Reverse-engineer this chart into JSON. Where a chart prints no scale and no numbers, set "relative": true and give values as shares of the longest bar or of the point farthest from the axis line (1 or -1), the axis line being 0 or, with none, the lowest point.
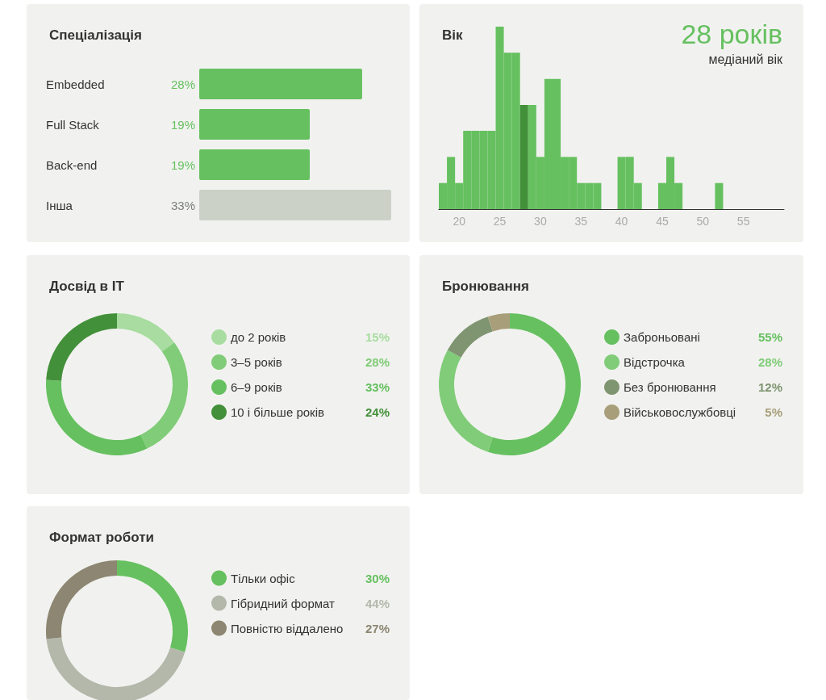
{
  "chart_data": [
    {
      "type": "bar",
      "title": "Спеціалізація",
      "orientation": "horizontal",
      "tick_labels": "y",
      "categories": [
        "Embedded",
        "Full Stack",
        "Back-end",
        "Інша"
      ],
      "values": [
        28,
        19,
        19,
        33
      ],
      "colors": [
        "#66c060",
        "#66c060",
        "#66c060",
        "#ccd1c8"
      ],
      "value_labels": [
        "28%",
        "19%",
        "19%",
        "33%"
      ]
    },
    {
      "type": "bar",
      "title": "Вік",
      "relative": true,
      "x": [
        18,
        19,
        20,
        21,
        22,
        23,
        24,
        25,
        26,
        27,
        28,
        29,
        30,
        31,
        32,
        33,
        34,
        35,
        36,
        37,
        38,
        39,
        40,
        41,
        42,
        43,
        44,
        45,
        46,
        47,
        48,
        49,
        50,
        51,
        52
      ],
      "values": [
        0.143,
        0.286,
        0.143,
        0.429,
        0.429,
        0.429,
        0.429,
        1,
        0.857,
        0.857,
        0.571,
        0.571,
        0.286,
        0.714,
        0.714,
        0.286,
        0.286,
        0.143,
        0.143,
        0.143,
        0,
        0,
        0.286,
        0.286,
        0.143,
        0,
        0,
        0.143,
        0.286,
        0.143,
        0,
        0,
        0,
        0,
        0.143
      ],
      "colors": [
        "#66c060",
        "#66c060",
        "#66c060",
        "#66c060",
        "#66c060",
        "#66c060",
        "#66c060",
        "#66c060",
        "#66c060",
        "#66c060",
        "#43903a",
        "#66c060",
        "#66c060",
        "#66c060",
        "#66c060",
        "#66c060",
        "#66c060",
        "#66c060",
        "#66c060",
        "#66c060",
        "#66c060",
        "#66c060",
        "#66c060",
        "#66c060",
        "#66c060",
        "#66c060",
        "#66c060",
        "#66c060",
        "#66c060",
        "#66c060",
        "#66c060",
        "#66c060",
        "#66c060",
        "#66c060",
        "#66c060"
      ],
      "xlim": [
        17.5,
        60
      ],
      "xticks": [
        20,
        25,
        30,
        35,
        40,
        45,
        50,
        55
      ],
      "annotations": [
        "28 років",
        "медіаний вік"
      ]
    },
    {
      "type": "donut",
      "title": "Досвід в IT",
      "legend": "right",
      "categories": [
        "до 2 років",
        "3–5 років",
        "6–9 років",
        "10 і більше років"
      ],
      "values": [
        15,
        28,
        33,
        24
      ],
      "colors": [
        "#a8dca0",
        "#80cc78",
        "#66c060",
        "#43903a"
      ],
      "value_labels": [
        "15%",
        "28%",
        "33%",
        "24%"
      ]
    },
    {
      "type": "donut",
      "title": "Бронювання",
      "legend": "right",
      "categories": [
        "Заброньовані",
        "Відстрочка",
        "Без бронювання",
        "Військовослужбовці"
      ],
      "values": [
        55,
        28,
        12,
        5
      ],
      "colors": [
        "#66c060",
        "#80cc78",
        "#7f9470",
        "#a89e7a"
      ],
      "value_labels": [
        "55%",
        "28%",
        "12%",
        "5%"
      ]
    },
    {
      "type": "donut",
      "title": "Формат роботи",
      "legend": "right",
      "categories": [
        "Тільки офіс",
        "Гібридний формат",
        "Повністю віддалено"
      ],
      "values": [
        30,
        44,
        27
      ],
      "colors": [
        "#66c060",
        "#b4b8ab",
        "#8c8672"
      ],
      "value_labels": [
        "30%",
        "44%",
        "27%"
      ]
    }
  ]
}
